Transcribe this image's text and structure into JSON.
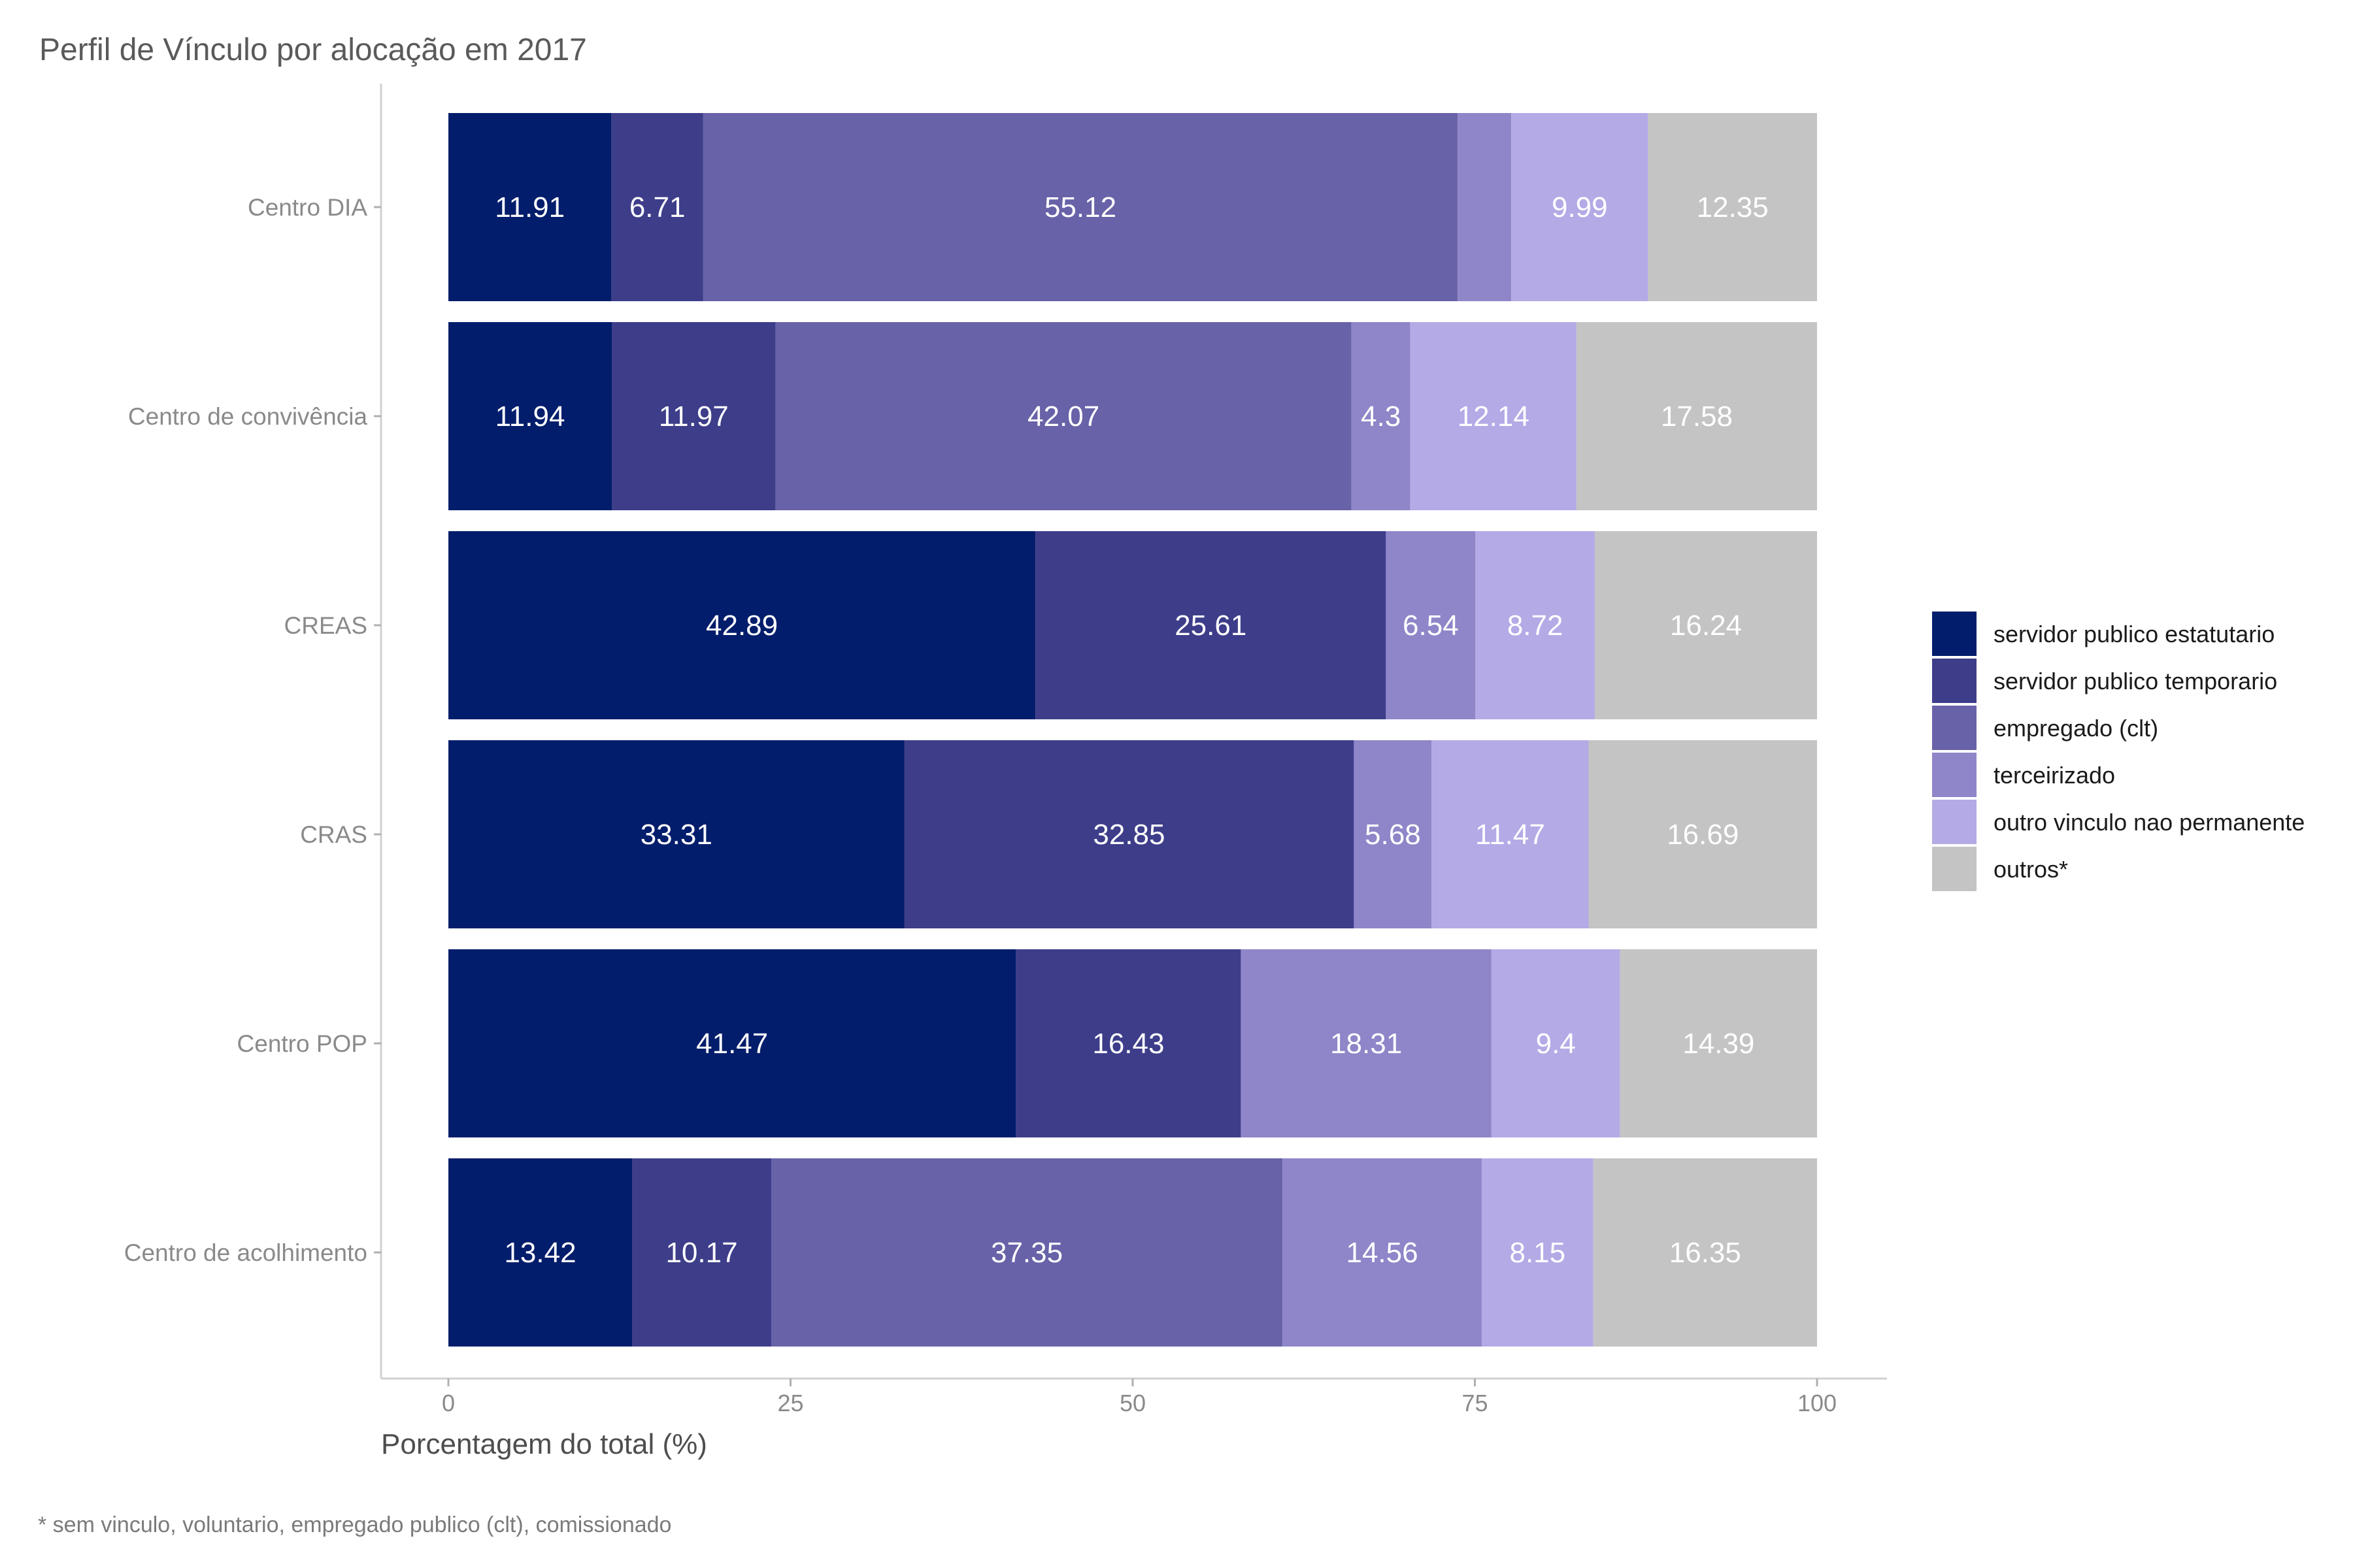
{
  "chart_data": {
    "type": "bar",
    "orientation": "horizontal",
    "stacked": true,
    "title": "Perfil de Vínculo por alocação em 2017",
    "xlabel": "Porcentagem do total (%)",
    "ylabel": "",
    "xlim": [
      0,
      100
    ],
    "xticks": [
      0,
      25,
      50,
      75,
      100
    ],
    "grid": false,
    "legend_position": "right",
    "caption": "* sem vinculo, voluntario, empregado publico (clt), comissionado",
    "categories": [
      "Centro DIA",
      "Centro de convivência",
      "CREAS",
      "CRAS",
      "Centro POP",
      "Centro de acolhimento"
    ],
    "series": [
      {
        "name": "servidor publico estatutario",
        "color": "#021d6b",
        "values": [
          11.91,
          11.94,
          42.89,
          33.31,
          41.47,
          13.42
        ],
        "labels": [
          "11.91",
          "11.94",
          "42.89",
          "33.31",
          "41.47",
          "13.42"
        ]
      },
      {
        "name": "servidor publico temporario",
        "color": "#3d3d8a",
        "values": [
          6.71,
          11.97,
          25.61,
          32.85,
          16.43,
          10.17
        ],
        "labels": [
          "6.71",
          "11.97",
          "25.61",
          "32.85",
          "16.43",
          "10.17"
        ]
      },
      {
        "name": "empregado (clt)",
        "color": "#6862a8",
        "values": [
          55.12,
          42.07,
          0,
          0,
          0,
          37.35
        ],
        "labels": [
          "55.12",
          "42.07",
          "",
          "",
          "",
          "37.35"
        ]
      },
      {
        "name": "terceirizado",
        "color": "#8e86c8",
        "values": [
          3.92,
          4.3,
          6.54,
          5.68,
          18.31,
          14.56
        ],
        "labels": [
          "",
          "4.3",
          "6.54",
          "5.68",
          "18.31",
          "14.56"
        ]
      },
      {
        "name": "outro vinculo nao permanente",
        "color": "#b4aae6",
        "values": [
          9.99,
          12.14,
          8.72,
          11.47,
          9.4,
          8.15
        ],
        "labels": [
          "9.99",
          "12.14",
          "8.72",
          "11.47",
          "9.4",
          "8.15"
        ]
      },
      {
        "name": "outros*",
        "color": "#c4c4c4",
        "values": [
          12.35,
          17.58,
          16.24,
          16.69,
          14.39,
          16.35
        ],
        "labels": [
          "12.35",
          "17.58",
          "16.24",
          "16.69",
          "14.39",
          "16.35"
        ]
      }
    ]
  }
}
